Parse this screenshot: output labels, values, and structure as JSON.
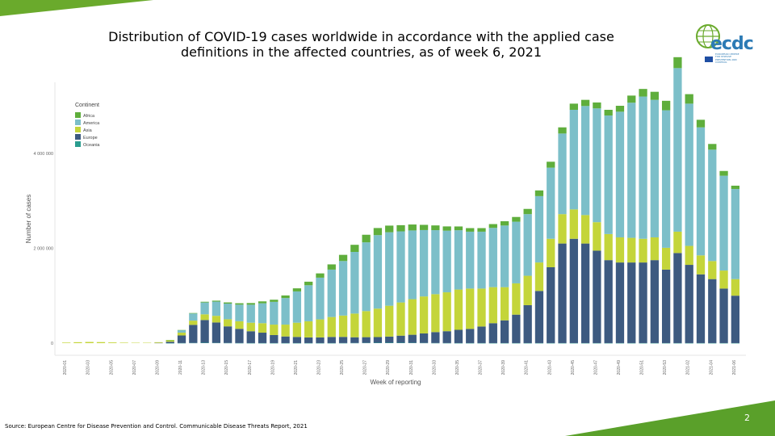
{
  "slide": {
    "title_line1": "Distribution of COVID-19 cases worldwide in accordance with the applied case",
    "title_line2": "definitions in the affected countries, as of week 6, 2021",
    "source": "Source: European Centre for Disease Prevention and Control. Communicable Disease Threats Report, 2021",
    "page_number": "2",
    "accent_color": "#6aaa2c",
    "logo_text": "ecdc",
    "logo_subtext": "EUROPEAN CENTRE FOR DISEASE PREVENTION AND CONTROL"
  },
  "chart_data": {
    "type": "bar",
    "stacked": true,
    "xlabel": "Week of reporting",
    "ylabel": "Number of cases",
    "ylim": [
      0,
      5500000
    ],
    "yticks": [
      0,
      2000000,
      4000000
    ],
    "ytick_labels": [
      "0",
      "2 000 000",
      "4 000 000"
    ],
    "grid": false,
    "legend_title": "Continent",
    "legend_position": "top-left",
    "categories": [
      "2020-01",
      "2020-02",
      "2020-03",
      "2020-04",
      "2020-05",
      "2020-06",
      "2020-07",
      "2020-08",
      "2020-09",
      "2020-10",
      "2020-11",
      "2020-12",
      "2020-13",
      "2020-14",
      "2020-15",
      "2020-16",
      "2020-17",
      "2020-18",
      "2020-19",
      "2020-20",
      "2020-21",
      "2020-22",
      "2020-23",
      "2020-24",
      "2020-25",
      "2020-26",
      "2020-27",
      "2020-28",
      "2020-29",
      "2020-30",
      "2020-31",
      "2020-32",
      "2020-33",
      "2020-34",
      "2020-35",
      "2020-36",
      "2020-37",
      "2020-38",
      "2020-39",
      "2020-40",
      "2020-41",
      "2020-42",
      "2020-43",
      "2020-44",
      "2020-45",
      "2020-46",
      "2020-47",
      "2020-48",
      "2020-49",
      "2020-50",
      "2020-51",
      "2020-52",
      "2020-53",
      "2021-01",
      "2021-02",
      "2021-03",
      "2021-04",
      "2021-05",
      "2021-06"
    ],
    "xtick_labels": [
      "2020-01",
      "2020-03",
      "2020-05",
      "2020-07",
      "2020-09",
      "2020-11",
      "2020-13",
      "2020-15",
      "2020-17",
      "2020-19",
      "2020-21",
      "2020-23",
      "2020-25",
      "2020-27",
      "2020-29",
      "2020-31",
      "2020-33",
      "2020-35",
      "2020-37",
      "2020-39",
      "2020-41",
      "2020-43",
      "2020-45",
      "2020-47",
      "2020-49",
      "2020-51",
      "2020-53",
      "2021-02",
      "2021-04",
      "2021-06"
    ],
    "series": [
      {
        "name": "Africa",
        "color": "#5fae3c",
        "values": [
          0,
          0,
          0,
          0,
          0,
          0,
          0,
          0,
          0,
          2000,
          5000,
          10000,
          15000,
          20000,
          25000,
          30000,
          35000,
          40000,
          45000,
          55000,
          65000,
          75000,
          90000,
          110000,
          130000,
          150000,
          160000,
          150000,
          140000,
          130000,
          125000,
          110000,
          100000,
          90000,
          80000,
          75000,
          75000,
          80000,
          90000,
          100000,
          110000,
          120000,
          125000,
          130000,
          130000,
          130000,
          125000,
          120000,
          125000,
          150000,
          160000,
          170000,
          200000,
          230000,
          200000,
          160000,
          120000,
          100000,
          70000
        ]
      },
      {
        "name": "America",
        "color": "#7cbfc9",
        "values": [
          0,
          0,
          0,
          0,
          0,
          0,
          0,
          0,
          0,
          5000,
          50000,
          150000,
          250000,
          300000,
          330000,
          350000,
          380000,
          420000,
          480000,
          560000,
          660000,
          760000,
          880000,
          1000000,
          1150000,
          1300000,
          1450000,
          1550000,
          1550000,
          1500000,
          1450000,
          1400000,
          1350000,
          1300000,
          1250000,
          1200000,
          1200000,
          1250000,
          1300000,
          1300000,
          1300000,
          1400000,
          1500000,
          1700000,
          2100000,
          2300000,
          2400000,
          2500000,
          2650000,
          2850000,
          3000000,
          2900000,
          2900000,
          3450000,
          3000000,
          2700000,
          2350000,
          2000000,
          1900000
        ]
      },
      {
        "name": "Asia",
        "color": "#c4d53a",
        "values": [
          12000,
          20000,
          25000,
          22000,
          15000,
          10000,
          8000,
          8000,
          15000,
          30000,
          60000,
          90000,
          120000,
          140000,
          150000,
          160000,
          180000,
          200000,
          220000,
          250000,
          300000,
          340000,
          380000,
          420000,
          450000,
          500000,
          550000,
          600000,
          650000,
          700000,
          750000,
          780000,
          800000,
          820000,
          850000,
          850000,
          800000,
          760000,
          700000,
          660000,
          620000,
          600000,
          600000,
          620000,
          620000,
          600000,
          600000,
          550000,
          530000,
          520000,
          500000,
          480000,
          460000,
          450000,
          400000,
          400000,
          380000,
          380000,
          350000
        ]
      },
      {
        "name": "Europe",
        "color": "#3d5a80",
        "values": [
          0,
          0,
          0,
          0,
          0,
          0,
          0,
          0,
          5000,
          30000,
          160000,
          380000,
          480000,
          430000,
          350000,
          300000,
          250000,
          220000,
          170000,
          140000,
          130000,
          120000,
          120000,
          130000,
          130000,
          120000,
          120000,
          120000,
          130000,
          150000,
          170000,
          200000,
          230000,
          250000,
          280000,
          300000,
          350000,
          420000,
          480000,
          600000,
          800000,
          1100000,
          1600000,
          2100000,
          2200000,
          2100000,
          1950000,
          1750000,
          1700000,
          1700000,
          1700000,
          1750000,
          1550000,
          1900000,
          1650000,
          1450000,
          1350000,
          1150000,
          1000000
        ]
      },
      {
        "name": "Oceania",
        "color": "#2a9d8f",
        "values": [
          0,
          0,
          0,
          0,
          0,
          0,
          0,
          0,
          0,
          500,
          2000,
          5000,
          8000,
          6000,
          4000,
          2000,
          1000,
          1000,
          1000,
          1000,
          1000,
          1000,
          1000,
          1000,
          2000,
          4000,
          6000,
          8000,
          9000,
          8000,
          7000,
          5000,
          3000,
          2000,
          1000,
          1000,
          1000,
          1000,
          1000,
          1000,
          1000,
          1000,
          1000,
          1000,
          1000,
          1000,
          1000,
          1000,
          1000,
          1000,
          1000,
          1000,
          1000,
          1000,
          1000,
          1000,
          1000,
          1000,
          1000
        ]
      }
    ]
  }
}
